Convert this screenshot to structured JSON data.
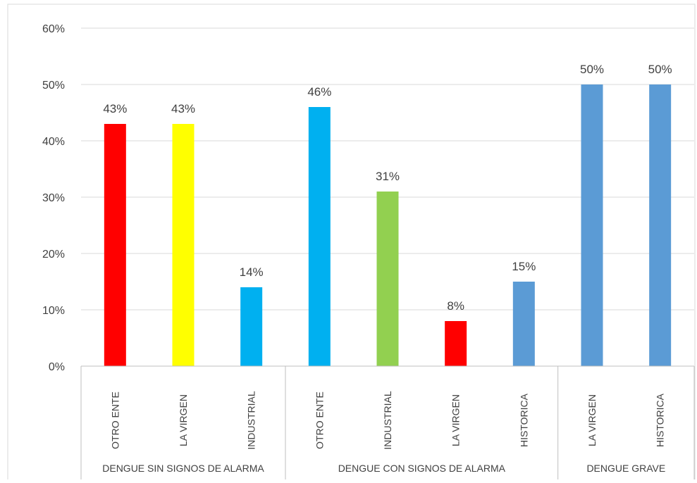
{
  "chart_data": {
    "type": "bar",
    "ylim": [
      0,
      60
    ],
    "yticks": [
      0,
      10,
      20,
      30,
      40,
      50,
      60
    ],
    "ytick_format": "percent",
    "grid": true,
    "groups": [
      {
        "label": "DENGUE SIN SIGNOS DE ALARMA",
        "bars": [
          {
            "category": "OTRO ENTE",
            "value": 43,
            "label": "43%",
            "color": "#FF0000"
          },
          {
            "category": "LA VIRGEN",
            "value": 43,
            "label": "43%",
            "color": "#FFFF00"
          },
          {
            "category": "INDUSTRIAL",
            "value": 14,
            "label": "14%",
            "color": "#00B0F0"
          }
        ]
      },
      {
        "label": "DENGUE CON SIGNOS DE ALARMA",
        "bars": [
          {
            "category": "OTRO ENTE",
            "value": 46,
            "label": "46%",
            "color": "#00B0F0"
          },
          {
            "category": "INDUSTRIAL",
            "value": 31,
            "label": "31%",
            "color": "#92D050"
          },
          {
            "category": "LA VIRGEN",
            "value": 8,
            "label": "8%",
            "color": "#FF0000"
          },
          {
            "category": "HISTORICA",
            "value": 15,
            "label": "15%",
            "color": "#5B9BD5"
          }
        ]
      },
      {
        "label": "DENGUE GRAVE",
        "bars": [
          {
            "category": "LA VIRGEN",
            "value": 50,
            "label": "50%",
            "color": "#5B9BD5"
          },
          {
            "category": "HISTORICA",
            "value": 50,
            "label": "50%",
            "color": "#5B9BD5"
          }
        ]
      }
    ],
    "colors": {
      "grid": "#D9D9D9",
      "axis": "#BFBFBF",
      "text": "#404040"
    }
  }
}
